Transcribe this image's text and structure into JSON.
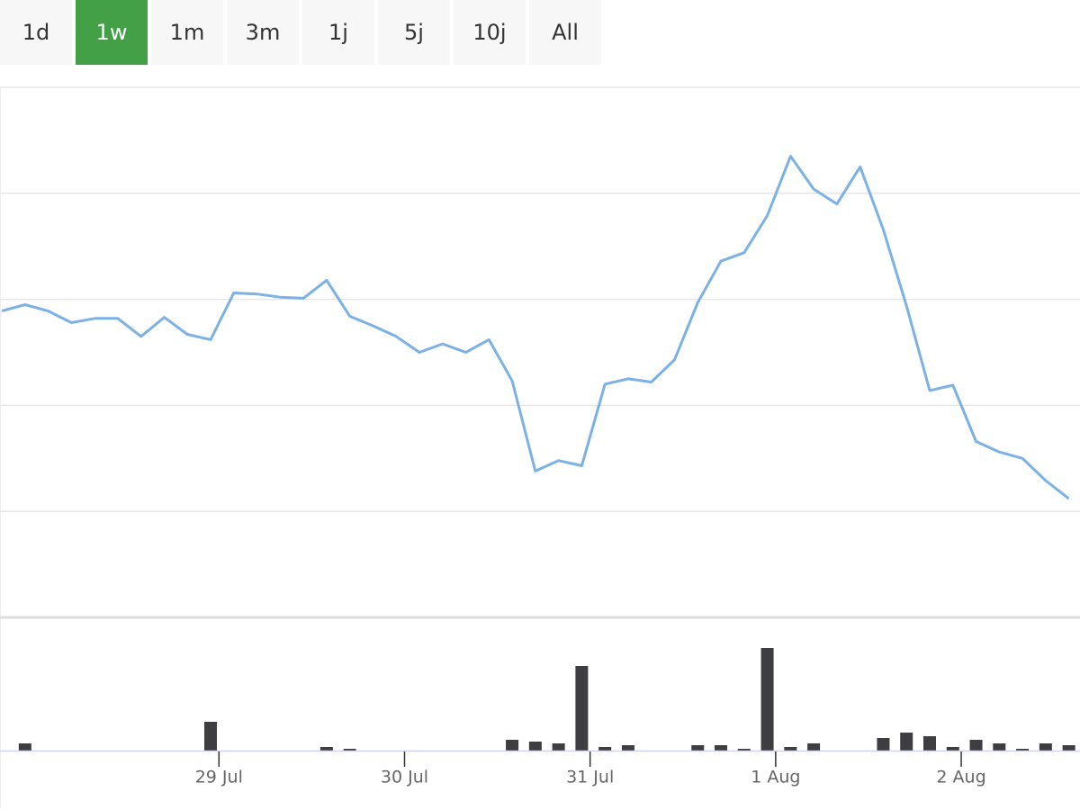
{
  "range_buttons": [
    "1d",
    "1w",
    "1m",
    "3m",
    "1j",
    "5j",
    "10j",
    "All"
  ],
  "selected_button": 1,
  "chart_data": [
    {
      "type": "line",
      "color": "#7cb1e6",
      "x": [
        27.83,
        27.955,
        28.08,
        28.205,
        28.33,
        28.455,
        28.58,
        28.705,
        28.83,
        28.955,
        29.08,
        29.205,
        29.33,
        29.455,
        29.58,
        29.705,
        29.83,
        29.955,
        30.08,
        30.205,
        30.33,
        30.455,
        30.58,
        30.705,
        30.83,
        30.955,
        31.08,
        31.205,
        31.33,
        31.455,
        31.58,
        31.705,
        31.83,
        31.955,
        32.08,
        32.205,
        32.33,
        32.455,
        32.58,
        32.705,
        32.83,
        32.955,
        33.08,
        33.205,
        33.33,
        33.455,
        33.58
      ],
      "values": [
        2.89,
        2.95,
        2.89,
        2.78,
        2.82,
        2.82,
        2.65,
        2.83,
        2.67,
        2.62,
        3.06,
        3.05,
        3.02,
        3.01,
        3.18,
        2.84,
        2.75,
        2.65,
        2.5,
        2.58,
        2.5,
        2.62,
        2.23,
        1.38,
        1.48,
        1.43,
        2.2,
        2.25,
        2.22,
        2.43,
        2.97,
        3.36,
        3.44,
        3.79,
        4.35,
        4.04,
        3.9,
        4.25,
        3.66,
        2.94,
        2.14,
        2.19,
        1.66,
        1.56,
        1.5,
        1.29,
        1.12
      ],
      "xlim": [
        27.82,
        33.64
      ],
      "ylim": [
        0,
        5
      ],
      "yticks": [
        0,
        1,
        2,
        3,
        4,
        5
      ],
      "grid": true
    },
    {
      "type": "bar",
      "color": "#3d3d42",
      "x": [
        27.955,
        28.955,
        29.58,
        29.705,
        30.58,
        30.705,
        30.83,
        30.955,
        31.08,
        31.205,
        31.58,
        31.705,
        31.83,
        31.955,
        32.08,
        32.205,
        32.58,
        32.705,
        32.83,
        32.955,
        33.08,
        33.205,
        33.33,
        33.455,
        33.58
      ],
      "values": [
        8,
        32,
        4,
        2,
        12,
        10,
        8,
        94,
        4,
        6,
        6,
        6,
        2,
        114,
        4,
        8,
        14,
        20,
        16,
        4,
        12,
        8,
        2,
        8,
        6
      ],
      "xlim": [
        27.82,
        33.64
      ],
      "ylim": [
        0,
        120
      ],
      "xticks": [
        {
          "value": 29,
          "label": "29 Jul"
        },
        {
          "value": 30,
          "label": "30 Jul"
        },
        {
          "value": 31,
          "label": "31 Jul"
        },
        {
          "value": 32,
          "label": "1 Aug"
        },
        {
          "value": 33,
          "label": "2 Aug"
        }
      ]
    }
  ]
}
